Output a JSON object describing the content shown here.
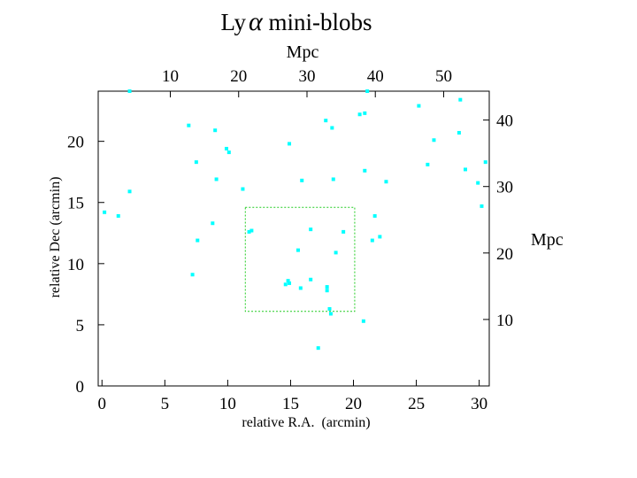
{
  "chart_data": {
    "type": "scatter",
    "title_prefix": "Ly",
    "title_greek": "α",
    "title_suffix": " mini-blobs",
    "xlabel": "relative R.A.  (arcmin)",
    "ylabel": "relative Dec (arcmin)",
    "top_axis_label": "Mpc",
    "right_axis_label": "Mpc",
    "xlim": [
      -0.3,
      30.8
    ],
    "ylim": [
      0,
      24.1
    ],
    "xticks": [
      0,
      5,
      10,
      15,
      20,
      25,
      30
    ],
    "yticks": [
      0,
      5,
      10,
      15,
      20
    ],
    "top_axis": {
      "ticks": [
        10,
        20,
        30,
        40,
        50
      ],
      "mpc_per_arcmin": 1.84,
      "offset_mpc": 0
    },
    "right_axis": {
      "ticks": [
        10,
        20,
        30,
        40
      ],
      "mpc_per_arcmin": 1.84,
      "offset_mpc": 0
    },
    "point_color": "#00ffff",
    "region_color": "#22cc22",
    "region": {
      "x0": 11.4,
      "x1": 20.1,
      "y0": 6.1,
      "y1": 14.6
    },
    "points": [
      [
        0.2,
        14.2
      ],
      [
        1.3,
        13.9
      ],
      [
        2.2,
        15.9
      ],
      [
        2.2,
        24.1
      ],
      [
        6.9,
        21.3
      ],
      [
        7.2,
        9.1
      ],
      [
        7.5,
        18.3
      ],
      [
        7.6,
        11.9
      ],
      [
        8.8,
        13.3
      ],
      [
        9.0,
        20.9
      ],
      [
        9.1,
        16.9
      ],
      [
        9.9,
        19.4
      ],
      [
        10.1,
        19.1
      ],
      [
        11.2,
        16.1
      ],
      [
        11.7,
        12.6
      ],
      [
        11.9,
        12.7
      ],
      [
        14.6,
        8.3
      ],
      [
        14.8,
        8.6
      ],
      [
        14.9,
        8.4
      ],
      [
        14.9,
        19.8
      ],
      [
        15.6,
        11.1
      ],
      [
        15.8,
        8.0
      ],
      [
        15.9,
        16.8
      ],
      [
        16.6,
        12.8
      ],
      [
        16.6,
        8.7
      ],
      [
        17.2,
        3.1
      ],
      [
        17.8,
        21.7
      ],
      [
        17.9,
        8.1
      ],
      [
        17.9,
        7.8
      ],
      [
        18.1,
        6.3
      ],
      [
        18.2,
        5.9
      ],
      [
        18.3,
        21.1
      ],
      [
        18.4,
        16.9
      ],
      [
        18.6,
        10.9
      ],
      [
        19.2,
        12.6
      ],
      [
        20.5,
        22.2
      ],
      [
        20.8,
        5.3
      ],
      [
        20.9,
        17.6
      ],
      [
        20.9,
        22.3
      ],
      [
        21.1,
        24.1
      ],
      [
        21.5,
        11.9
      ],
      [
        21.7,
        13.9
      ],
      [
        22.1,
        12.2
      ],
      [
        22.6,
        16.7
      ],
      [
        25.2,
        22.9
      ],
      [
        25.9,
        18.1
      ],
      [
        26.4,
        20.1
      ],
      [
        28.4,
        20.7
      ],
      [
        28.5,
        23.4
      ],
      [
        28.9,
        17.7
      ],
      [
        29.9,
        16.6
      ],
      [
        30.2,
        14.7
      ],
      [
        30.5,
        18.3
      ]
    ]
  }
}
